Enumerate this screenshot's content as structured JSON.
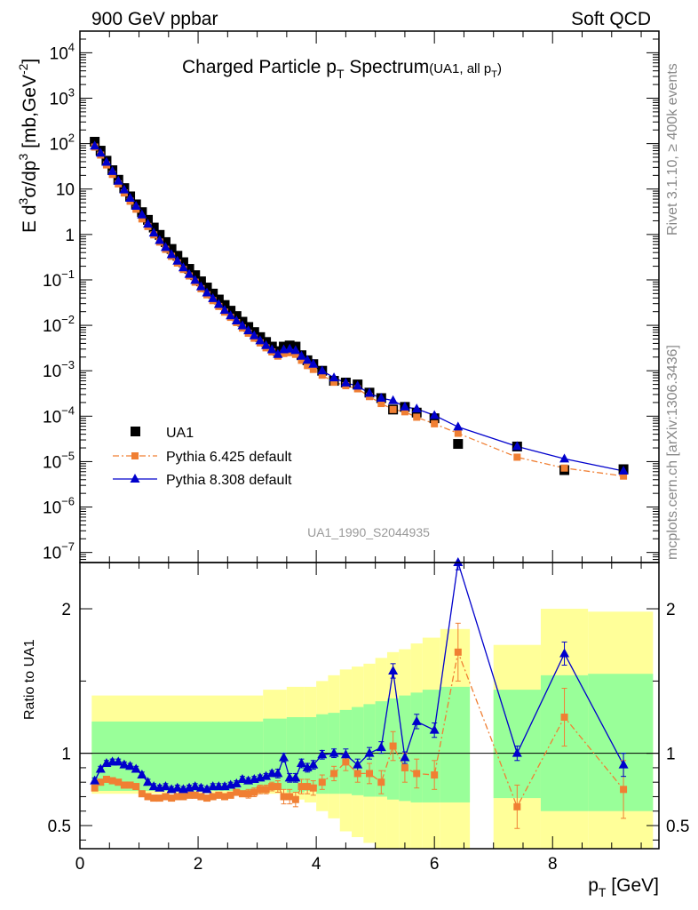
{
  "header": {
    "left": "900 GeV ppbar",
    "right": "Soft QCD"
  },
  "title": {
    "main_pre": "Charged Particle p",
    "main_sub": "T",
    "main_post": " Spectrum",
    "small_pre": "(UA1, all p",
    "small_sub": "T",
    "small_post": ")"
  },
  "side_text": {
    "rivet": "Rivet 3.1.10, ≥ 400k events",
    "mcplots": "mcplots.cern.ch [arXiv:1306.3436]"
  },
  "watermark": "UA1_1990_S2044935",
  "colors": {
    "data": "#000000",
    "pythia6": "#f07f33",
    "pythia8": "#0000cc",
    "band_outer": "#ffff99",
    "band_inner": "#99ff99"
  },
  "chart_data": [
    {
      "type": "scatter",
      "name": "main",
      "yscale": "log",
      "xlim": [
        0,
        9.8
      ],
      "ylim": [
        6e-08,
        30000
      ],
      "ylabel": {
        "pre": "E d",
        "sup1": "3",
        "mid1": "σ/dp",
        "sup2": "3",
        "mid2": " [mb,GeV",
        "sup3": "-2",
        "post": "]"
      },
      "yticks": [
        {
          "v": 10000.0,
          "base": "10",
          "exp": "4"
        },
        {
          "v": 1000.0,
          "base": "10",
          "exp": "3"
        },
        {
          "v": 100.0,
          "base": "10",
          "exp": "2"
        },
        {
          "v": 10,
          "base": "10",
          "exp": ""
        },
        {
          "v": 1,
          "base": "1",
          "exp": ""
        },
        {
          "v": 0.1,
          "base": "10",
          "exp": "−1"
        },
        {
          "v": 0.01,
          "base": "10",
          "exp": "−2"
        },
        {
          "v": 0.001,
          "base": "10",
          "exp": "−3"
        },
        {
          "v": 0.0001,
          "base": "10",
          "exp": "−4"
        },
        {
          "v": 1e-05,
          "base": "10",
          "exp": "−5"
        },
        {
          "v": 1e-06,
          "base": "10",
          "exp": "−6"
        },
        {
          "v": 1e-07,
          "base": "10",
          "exp": "−7"
        }
      ],
      "legend": {
        "position": "bottom-left",
        "entries": [
          "UA1",
          "Pythia 6.425 default",
          "Pythia 8.308 default"
        ]
      },
      "x": [
        0.25,
        0.35,
        0.45,
        0.55,
        0.65,
        0.75,
        0.85,
        0.95,
        1.05,
        1.15,
        1.25,
        1.35,
        1.45,
        1.55,
        1.65,
        1.75,
        1.85,
        1.95,
        2.05,
        2.15,
        2.25,
        2.35,
        2.45,
        2.55,
        2.65,
        2.75,
        2.85,
        2.95,
        3.05,
        3.15,
        3.25,
        3.35,
        3.45,
        3.55,
        3.65,
        3.75,
        3.85,
        3.95,
        4.1,
        4.3,
        4.5,
        4.7,
        4.9,
        5.1,
        5.3,
        5.5,
        5.7,
        6.0,
        6.4,
        7.4,
        8.2,
        9.2
      ],
      "series": [
        {
          "name": "UA1",
          "marker": "square",
          "values": [
            110,
            70,
            42,
            26,
            16,
            10.5,
            6.9,
            4.6,
            3.1,
            2.1,
            1.42,
            0.98,
            0.68,
            0.48,
            0.34,
            0.245,
            0.175,
            0.127,
            0.093,
            0.068,
            0.05,
            0.037,
            0.028,
            0.021,
            0.016,
            0.012,
            0.0092,
            0.0071,
            0.0055,
            0.0043,
            0.0034,
            0.0027,
            0.0034,
            0.0036,
            0.0034,
            0.0022,
            0.0017,
            0.0014,
            0.001,
            0.0006,
            0.00055,
            0.0005,
            0.00033,
            0.00025,
            0.00014,
            0.00016,
            0.00012,
            9e-05,
            2.45e-05,
            2.15e-05,
            6.5e-06,
            6.8e-06
          ]
        },
        {
          "name": "Pythia 6.425 default",
          "marker": "square",
          "line": "dashdot",
          "values": [
            84,
            56,
            34,
            21,
            13,
            8.2,
            5.4,
            3.6,
            2.2,
            1.5,
            0.98,
            0.68,
            0.47,
            0.33,
            0.235,
            0.17,
            0.122,
            0.089,
            0.064,
            0.047,
            0.035,
            0.026,
            0.0195,
            0.015,
            0.0115,
            0.0087,
            0.0067,
            0.0052,
            0.0041,
            0.0032,
            0.0026,
            0.0021,
            0.0024,
            0.0025,
            0.0023,
            0.0017,
            0.0013,
            0.00107,
            0.0008,
            0.00056,
            0.00047,
            0.0004,
            0.00027,
            0.00019,
            0.00014,
            0.000125,
            9.5e-05,
            6.8e-05,
            4.2e-05,
            1.25e-05,
            7.2e-06,
            4.8e-06
          ]
        },
        {
          "name": "Pythia 8.308 default",
          "marker": "triangle",
          "line": "solid",
          "values": [
            89,
            62,
            39,
            24.5,
            15,
            9.6,
            6.3,
            4.2,
            2.7,
            1.7,
            1.08,
            0.74,
            0.52,
            0.36,
            0.26,
            0.185,
            0.133,
            0.098,
            0.071,
            0.052,
            0.039,
            0.029,
            0.0215,
            0.0163,
            0.0126,
            0.0098,
            0.0076,
            0.0059,
            0.0046,
            0.0036,
            0.0029,
            0.0023,
            0.0029,
            0.003,
            0.0028,
            0.0021,
            0.0017,
            0.0014,
            0.001,
            0.0007,
            0.00054,
            0.00046,
            0.00032,
            0.00025,
            0.00022,
            0.00016,
            0.000145,
            0.000104,
            5.8e-05,
            2.15e-05,
            1.15e-05,
            6.2e-06
          ]
        }
      ]
    },
    {
      "type": "line",
      "name": "ratio",
      "xlim": [
        0,
        9.8
      ],
      "ylim": [
        0.34,
        2.32
      ],
      "ylabel": "Ratio to UA1",
      "xlabel_pre": "p",
      "xlabel_sub": "T",
      "xlabel_post": " [GeV]",
      "xticks": [
        0,
        2,
        4,
        6,
        8
      ],
      "yticks": [
        0.5,
        1,
        2
      ],
      "x": [
        0.25,
        0.35,
        0.45,
        0.55,
        0.65,
        0.75,
        0.85,
        0.95,
        1.05,
        1.15,
        1.25,
        1.35,
        1.45,
        1.55,
        1.65,
        1.75,
        1.85,
        1.95,
        2.05,
        2.15,
        2.25,
        2.35,
        2.45,
        2.55,
        2.65,
        2.75,
        2.85,
        2.95,
        3.05,
        3.15,
        3.25,
        3.35,
        3.45,
        3.55,
        3.65,
        3.75,
        3.85,
        3.95,
        4.1,
        4.3,
        4.5,
        4.7,
        4.9,
        5.1,
        5.3,
        5.5,
        5.7,
        6.0,
        6.4,
        7.4,
        8.2,
        9.2
      ],
      "series": [
        {
          "name": "Pythia 6.425 default",
          "values": [
            0.76,
            0.8,
            0.82,
            0.81,
            0.8,
            0.78,
            0.78,
            0.77,
            0.72,
            0.7,
            0.69,
            0.69,
            0.7,
            0.69,
            0.7,
            0.7,
            0.71,
            0.71,
            0.7,
            0.69,
            0.7,
            0.71,
            0.7,
            0.71,
            0.73,
            0.72,
            0.72,
            0.73,
            0.75,
            0.75,
            0.77,
            0.77,
            0.7,
            0.7,
            0.68,
            0.77,
            0.77,
            0.76,
            0.8,
            0.86,
            0.94,
            0.86,
            0.86,
            0.8,
            1.05,
            0.9,
            0.86,
            0.85,
            1.7,
            0.63,
            1.25,
            0.75
          ],
          "errors": [
            0.02,
            0.02,
            0.02,
            0.02,
            0.02,
            0.02,
            0.02,
            0.02,
            0.02,
            0.02,
            0.02,
            0.02,
            0.02,
            0.02,
            0.02,
            0.02,
            0.02,
            0.02,
            0.02,
            0.02,
            0.02,
            0.02,
            0.02,
            0.02,
            0.02,
            0.02,
            0.03,
            0.03,
            0.03,
            0.03,
            0.03,
            0.04,
            0.05,
            0.05,
            0.05,
            0.05,
            0.05,
            0.05,
            0.05,
            0.05,
            0.06,
            0.06,
            0.07,
            0.08,
            0.1,
            0.1,
            0.1,
            0.1,
            0.2,
            0.15,
            0.2,
            0.2
          ]
        },
        {
          "name": "Pythia 8.308 default",
          "values": [
            0.81,
            0.89,
            0.93,
            0.94,
            0.94,
            0.92,
            0.91,
            0.89,
            0.85,
            0.8,
            0.77,
            0.76,
            0.77,
            0.75,
            0.76,
            0.75,
            0.76,
            0.77,
            0.76,
            0.75,
            0.77,
            0.77,
            0.77,
            0.78,
            0.79,
            0.82,
            0.81,
            0.82,
            0.83,
            0.84,
            0.86,
            0.86,
            0.97,
            0.83,
            0.83,
            0.93,
            0.9,
            0.92,
            0.99,
            1.0,
            0.99,
            0.92,
            1.0,
            1.04,
            1.57,
            0.97,
            1.22,
            1.16,
            2.33,
            1.0,
            1.69,
            0.92
          ],
          "errors": [
            0.02,
            0.02,
            0.02,
            0.02,
            0.02,
            0.02,
            0.02,
            0.02,
            0.02,
            0.02,
            0.02,
            0.02,
            0.02,
            0.02,
            0.02,
            0.02,
            0.02,
            0.02,
            0.02,
            0.02,
            0.02,
            0.02,
            0.02,
            0.02,
            0.02,
            0.02,
            0.02,
            0.02,
            0.02,
            0.02,
            0.02,
            0.03,
            0.03,
            0.03,
            0.03,
            0.03,
            0.03,
            0.03,
            0.03,
            0.03,
            0.04,
            0.04,
            0.04,
            0.04,
            0.05,
            0.04,
            0.05,
            0.05,
            0.06,
            0.05,
            0.08,
            0.08
          ]
        }
      ],
      "bands": [
        {
          "x0": 0.2,
          "x1": 3.1,
          "outer": [
            0.72,
            1.4
          ],
          "inner": [
            0.74,
            1.22
          ]
        },
        {
          "x0": 3.1,
          "x1": 3.5,
          "outer": [
            0.72,
            1.44
          ],
          "inner": [
            0.75,
            1.24
          ]
        },
        {
          "x0": 3.5,
          "x1": 3.8,
          "outer": [
            0.68,
            1.46
          ],
          "inner": [
            0.73,
            1.25
          ]
        },
        {
          "x0": 3.8,
          "x1": 4.0,
          "outer": [
            0.66,
            1.46
          ],
          "inner": [
            0.74,
            1.25
          ]
        },
        {
          "x0": 4.0,
          "x1": 4.2,
          "outer": [
            0.6,
            1.5
          ],
          "inner": [
            0.72,
            1.27
          ]
        },
        {
          "x0": 4.2,
          "x1": 4.4,
          "outer": [
            0.55,
            1.54
          ],
          "inner": [
            0.72,
            1.28
          ]
        },
        {
          "x0": 4.4,
          "x1": 4.6,
          "outer": [
            0.46,
            1.58
          ],
          "inner": [
            0.72,
            1.3
          ]
        },
        {
          "x0": 4.6,
          "x1": 4.8,
          "outer": [
            0.42,
            1.6
          ],
          "inner": [
            0.71,
            1.32
          ]
        },
        {
          "x0": 4.8,
          "x1": 5.0,
          "outer": [
            0.38,
            1.62
          ],
          "inner": [
            0.7,
            1.34
          ]
        },
        {
          "x0": 5.0,
          "x1": 5.2,
          "outer": [
            0.34,
            1.66
          ],
          "inner": [
            0.7,
            1.36
          ]
        },
        {
          "x0": 5.2,
          "x1": 5.4,
          "outer": [
            0.34,
            1.7
          ],
          "inner": [
            0.68,
            1.38
          ]
        },
        {
          "x0": 5.4,
          "x1": 5.6,
          "outer": [
            0.34,
            1.72
          ],
          "inner": [
            0.67,
            1.4
          ]
        },
        {
          "x0": 5.6,
          "x1": 5.8,
          "outer": [
            0.34,
            1.76
          ],
          "inner": [
            0.66,
            1.42
          ]
        },
        {
          "x0": 5.8,
          "x1": 6.1,
          "outer": [
            0.34,
            1.8
          ],
          "inner": [
            0.66,
            1.44
          ]
        },
        {
          "x0": 6.1,
          "x1": 6.6,
          "outer": [
            0.34,
            1.86
          ],
          "inner": [
            0.66,
            1.46
          ]
        },
        {
          "x0": 7.0,
          "x1": 7.8,
          "outer": [
            0.34,
            1.75
          ],
          "inner": [
            0.69,
            1.44
          ]
        },
        {
          "x0": 7.8,
          "x1": 8.6,
          "outer": [
            0.34,
            2.0
          ],
          "inner": [
            0.6,
            1.54
          ]
        },
        {
          "x0": 8.6,
          "x1": 9.7,
          "outer": [
            0.34,
            1.98
          ],
          "inner": [
            0.6,
            1.55
          ]
        }
      ]
    }
  ]
}
